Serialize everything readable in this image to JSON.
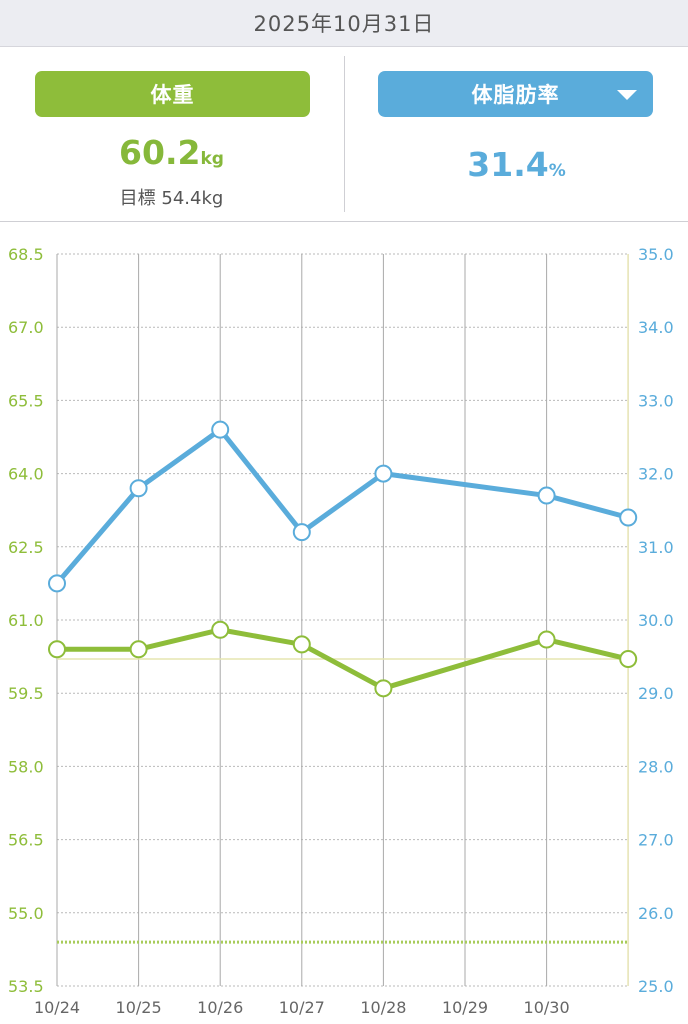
{
  "header": {
    "date": "2025年10月31日"
  },
  "weight_panel": {
    "button_label": "体重",
    "value": "60.2",
    "unit": "kg",
    "target_label": "目標",
    "target_value": "54.4kg"
  },
  "fat_panel": {
    "button_label": "体脂肪率",
    "value": "31.4",
    "unit": "%"
  },
  "chart_data": {
    "type": "line",
    "x": [
      "10/24",
      "10/25",
      "10/26",
      "10/27",
      "10/28",
      "10/29",
      "10/30",
      "10/31"
    ],
    "x_tick_labels": [
      "10/24",
      "10/25",
      "10/26",
      "10/27",
      "10/28",
      "10/29",
      "10/30"
    ],
    "y_left": {
      "range": [
        53.5,
        68.5
      ],
      "ticks": [
        "68.5",
        "67.0",
        "65.5",
        "64.0",
        "62.5",
        "61.0",
        "59.5",
        "58.0",
        "56.5",
        "55.0",
        "53.5"
      ],
      "color": "#8ebd3a"
    },
    "y_right": {
      "range": [
        25.0,
        35.0
      ],
      "ticks": [
        "35.0",
        "34.0",
        "33.0",
        "32.0",
        "31.0",
        "30.0",
        "29.0",
        "28.0",
        "27.0",
        "26.0",
        "25.0"
      ],
      "color": "#5aacdb"
    },
    "series": [
      {
        "axis": "left",
        "color": "#8ebd3a",
        "points": [
          [
            "10/24",
            60.4
          ],
          [
            "10/25",
            60.4
          ],
          [
            "10/26",
            60.8
          ],
          [
            "10/27",
            60.5
          ],
          [
            "10/28",
            59.6
          ],
          [
            "10/30",
            60.6
          ],
          [
            "10/31",
            60.2
          ]
        ]
      },
      {
        "axis": "right",
        "color": "#5aacdb",
        "points": [
          [
            "10/24",
            30.5
          ],
          [
            "10/25",
            31.8
          ],
          [
            "10/26",
            32.6
          ],
          [
            "10/27",
            31.2
          ],
          [
            "10/28",
            32.0
          ],
          [
            "10/30",
            31.7
          ],
          [
            "10/31",
            31.4
          ]
        ]
      }
    ],
    "reference_lines": [
      {
        "axis": "left",
        "value": 60.2,
        "style": "solid",
        "color": "#e5e6b0"
      },
      {
        "axis": "left",
        "value": 54.4,
        "style": "dotted",
        "color": "#a8cc5a"
      }
    ],
    "grid": true
  }
}
